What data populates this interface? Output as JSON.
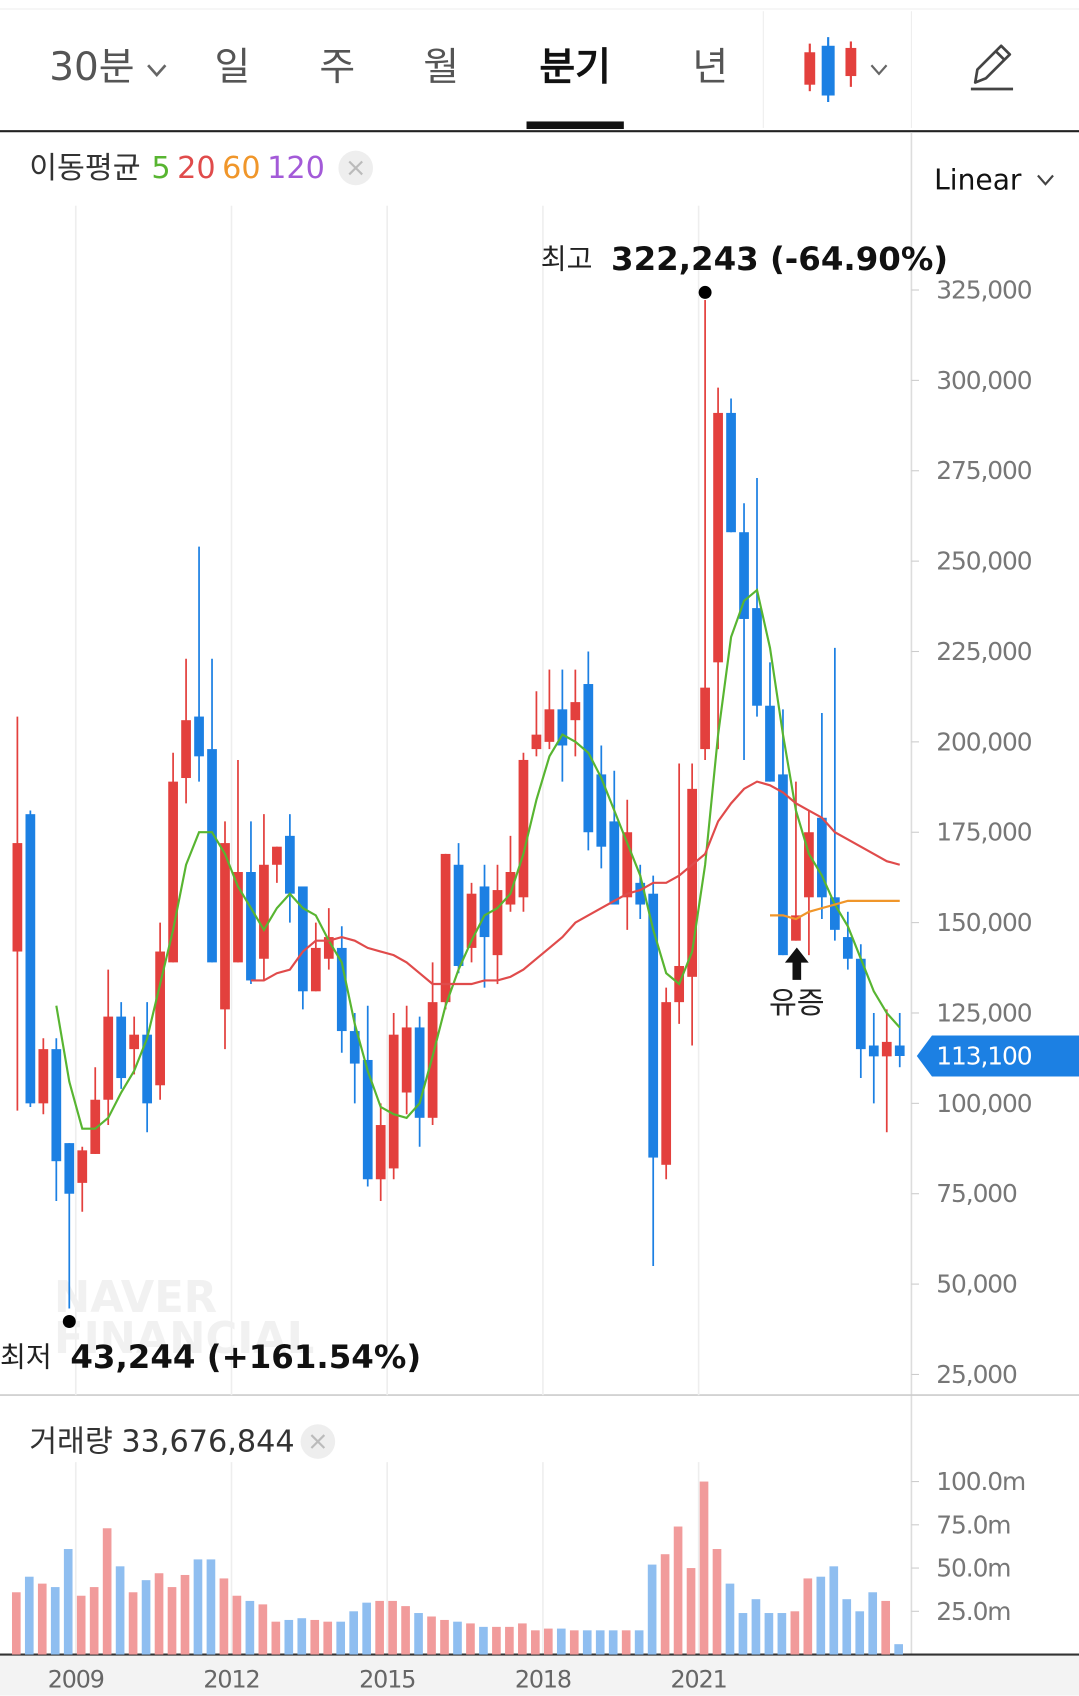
{
  "tabs": [
    "30분",
    "일",
    "주",
    "월",
    "분기",
    "년"
  ],
  "active_tab": 4,
  "chart_data": [
    {
      "type": "candlestick",
      "legend_title": "이동평균",
      "scale_label": "Linear",
      "watermark": [
        "NAVER",
        "FINANCIAL"
      ],
      "up_color": "#e3403d",
      "down_color": "#1c80e3",
      "x": [
        2007.875,
        2008.125,
        2008.375,
        2008.625,
        2008.875,
        2009.125,
        2009.375,
        2009.625,
        2009.875,
        2010.125,
        2010.375,
        2010.625,
        2010.875,
        2011.125,
        2011.375,
        2011.625,
        2011.875,
        2012.125,
        2012.375,
        2012.625,
        2012.875,
        2013.125,
        2013.375,
        2013.625,
        2013.875,
        2014.125,
        2014.375,
        2014.625,
        2014.875,
        2015.125,
        2015.375,
        2015.625,
        2015.875,
        2016.125,
        2016.375,
        2016.625,
        2016.875,
        2017.125,
        2017.375,
        2017.625,
        2017.875,
        2018.125,
        2018.375,
        2018.625,
        2018.875,
        2019.125,
        2019.375,
        2019.625,
        2019.875,
        2020.125,
        2020.375,
        2020.625,
        2020.875,
        2021.125,
        2021.375,
        2021.625,
        2021.875,
        2022.125,
        2022.375,
        2022.625,
        2022.875,
        2023.125,
        2023.375,
        2023.625,
        2023.875,
        2024.125,
        2024.375,
        2024.625,
        2024.875
      ],
      "xlim": [
        2007.54,
        2025.1
      ],
      "xticks": [
        2009,
        2012,
        2015,
        2018,
        2021
      ],
      "ylim": [
        19300,
        348300
      ],
      "yticks": [
        {
          "value": 325000,
          "label": "325,000"
        },
        {
          "value": 300000,
          "label": "300,000"
        },
        {
          "value": 275000,
          "label": "275,000"
        },
        {
          "value": 250000,
          "label": "250,000"
        },
        {
          "value": 225000,
          "label": "225,000"
        },
        {
          "value": 200000,
          "label": "200,000"
        },
        {
          "value": 175000,
          "label": "175,000"
        },
        {
          "value": 150000,
          "label": "150,000"
        },
        {
          "value": 125000,
          "label": "125,000"
        },
        {
          "value": 100000,
          "label": "100,000"
        },
        {
          "value": 75000,
          "label": "75,000"
        },
        {
          "value": 50000,
          "label": "50,000"
        },
        {
          "value": 25000,
          "label": "25,000"
        }
      ],
      "open": [
        142000,
        180000,
        100000,
        115000,
        89000,
        78000,
        86000,
        101000,
        124000,
        115000,
        119000,
        105000,
        139000,
        190000,
        207000,
        198000,
        126000,
        139000,
        164000,
        140000,
        166000,
        174000,
        160000,
        131000,
        140000,
        143000,
        120000,
        112000,
        79000,
        82000,
        103000,
        121000,
        96000,
        128000,
        166000,
        143000,
        160000,
        141000,
        155000,
        157000,
        198000,
        200000,
        209000,
        206000,
        216000,
        191000,
        178000,
        157000,
        161000,
        158000,
        83000,
        128000,
        135000,
        198000,
        222000,
        291000,
        258000,
        237000,
        210000,
        191000,
        145000,
        157000,
        179000,
        157000,
        146000,
        140000,
        116000,
        113000,
        116000
      ],
      "high": [
        207000,
        181000,
        118000,
        118000,
        89000,
        88000,
        110000,
        137000,
        128000,
        124000,
        128000,
        150000,
        197000,
        223000,
        254000,
        223000,
        178000,
        195000,
        178000,
        180000,
        171000,
        180000,
        160000,
        150000,
        154000,
        149000,
        125000,
        127000,
        100000,
        125000,
        127000,
        124000,
        139000,
        169000,
        172000,
        161000,
        166000,
        166000,
        174000,
        197000,
        214000,
        220000,
        220000,
        220000,
        225000,
        199000,
        192000,
        184000,
        166000,
        163000,
        132000,
        194000,
        194000,
        322243,
        298000,
        295000,
        266000,
        273000,
        222000,
        209000,
        189000,
        181000,
        208000,
        226000,
        153000,
        144000,
        125000,
        126000,
        125000
      ],
      "low": [
        98000,
        99000,
        97000,
        73000,
        43244,
        70000,
        86000,
        94000,
        104000,
        108000,
        92000,
        101000,
        139000,
        183000,
        189000,
        139000,
        115000,
        139000,
        133000,
        134000,
        161000,
        150000,
        126000,
        131000,
        137000,
        114000,
        100000,
        77000,
        73000,
        79000,
        97000,
        88000,
        94000,
        126000,
        136000,
        139000,
        132000,
        133000,
        153000,
        153000,
        196000,
        198000,
        189000,
        196000,
        170000,
        165000,
        155000,
        148000,
        151000,
        55000,
        79000,
        122000,
        116000,
        195000,
        198000,
        258000,
        195000,
        207000,
        189000,
        141000,
        145000,
        141000,
        151000,
        145000,
        137000,
        107000,
        100000,
        92000,
        110000
      ],
      "close": [
        172000,
        100000,
        115000,
        84000,
        75000,
        87000,
        101000,
        124000,
        107000,
        119000,
        100000,
        142000,
        189000,
        206000,
        196000,
        139000,
        172000,
        164000,
        134000,
        166000,
        171000,
        158000,
        131000,
        143000,
        146000,
        120000,
        111000,
        79000,
        94000,
        119000,
        121000,
        96000,
        128000,
        169000,
        138000,
        158000,
        146000,
        159000,
        164000,
        195000,
        202000,
        209000,
        199000,
        211000,
        175000,
        171000,
        155000,
        175000,
        155000,
        85000,
        128000,
        138000,
        187000,
        215000,
        291000,
        258000,
        234000,
        210000,
        189000,
        141000,
        152000,
        175000,
        157000,
        148000,
        140000,
        115000,
        113000,
        117000,
        113100
      ],
      "moving_averages": [
        {
          "name": "5",
          "color": "#58b531",
          "values": [
            null,
            null,
            null,
            127000,
            106000,
            93000,
            93000,
            96000,
            103000,
            109000,
            118000,
            133000,
            148000,
            166000,
            175000,
            175000,
            169000,
            160000,
            154000,
            148000,
            154000,
            158000,
            154000,
            152000,
            145000,
            139000,
            122000,
            109000,
            99000,
            97000,
            96000,
            100000,
            113000,
            127000,
            137000,
            145000,
            152000,
            154000,
            158000,
            169000,
            184000,
            196000,
            202000,
            200000,
            197000,
            190000,
            181000,
            172000,
            163000,
            148000,
            136000,
            133000,
            142000,
            166000,
            202000,
            229000,
            239000,
            242000,
            226000,
            202000,
            181000,
            169000,
            163000,
            155000,
            149000,
            140000,
            131000,
            125000,
            121000
          ]
        },
        {
          "name": "20",
          "color": "#e04b4b",
          "values": [
            null,
            null,
            null,
            null,
            null,
            null,
            null,
            null,
            null,
            null,
            null,
            null,
            null,
            null,
            null,
            null,
            null,
            null,
            134000,
            134000,
            136000,
            137000,
            142000,
            145000,
            145000,
            146000,
            145000,
            143000,
            142000,
            141000,
            139000,
            136000,
            133000,
            133000,
            133000,
            133000,
            134000,
            134000,
            135000,
            137000,
            140000,
            143000,
            146000,
            150000,
            152000,
            154000,
            156000,
            158000,
            159000,
            161000,
            161000,
            163000,
            166000,
            169000,
            178000,
            183000,
            187000,
            189000,
            188000,
            186000,
            183000,
            181000,
            179000,
            175000,
            173000,
            171000,
            169000,
            167000,
            166000
          ]
        },
        {
          "name": "60",
          "color": "#f0962a",
          "values": [
            null,
            null,
            null,
            null,
            null,
            null,
            null,
            null,
            null,
            null,
            null,
            null,
            null,
            null,
            null,
            null,
            null,
            null,
            null,
            null,
            null,
            null,
            null,
            null,
            null,
            null,
            null,
            null,
            null,
            null,
            null,
            null,
            null,
            null,
            null,
            null,
            null,
            null,
            null,
            null,
            null,
            null,
            null,
            null,
            null,
            null,
            null,
            null,
            null,
            null,
            null,
            null,
            null,
            null,
            null,
            null,
            null,
            null,
            152000,
            152000,
            151000,
            153000,
            154000,
            155000,
            156000,
            156000,
            156000,
            156000,
            156000
          ]
        },
        {
          "name": "120",
          "color": "#a35ad8"
        }
      ],
      "high_annotation": {
        "label": "최고",
        "text": "322,243 (-64.90%)"
      },
      "low_annotation": {
        "label": "최저",
        "text": "43,244 (+161.54%)"
      },
      "event_label": "유증",
      "current_price": {
        "value": 113100,
        "label": "113,100"
      }
    },
    {
      "type": "bar",
      "title": "거래량",
      "title_value": "33,676,844",
      "up_color": "#f19b9b",
      "down_color": "#8fbef0",
      "ylim": [
        0,
        143750000
      ],
      "yticks": [
        {
          "value": 100000000,
          "label": "100.0m"
        },
        {
          "value": 75000000,
          "label": "75.0m"
        },
        {
          "value": 50000000,
          "label": "50.0m"
        },
        {
          "value": 25000000,
          "label": "25.0m"
        }
      ],
      "values": [
        36000000,
        45000000,
        41000000,
        39000000,
        61000000,
        34000000,
        39000000,
        73000000,
        51000000,
        36000000,
        43000000,
        47000000,
        39000000,
        46000000,
        55000000,
        55000000,
        44000000,
        34000000,
        31000000,
        29000000,
        19000000,
        20000000,
        21000000,
        20000000,
        19000000,
        19000000,
        25000000,
        30000000,
        31000000,
        31000000,
        28000000,
        24000000,
        22000000,
        20000000,
        19000000,
        18000000,
        16000000,
        16000000,
        16000000,
        18000000,
        14000000,
        15000000,
        15000000,
        14000000,
        14000000,
        14000000,
        14000000,
        14000000,
        14000000,
        52000000,
        58000000,
        74000000,
        50000000,
        100000000,
        61000000,
        41000000,
        24000000,
        32000000,
        24000000,
        24000000,
        25000000,
        44000000,
        45000000,
        51000000,
        32000000,
        25000000,
        36000000,
        31000000,
        6000000
      ]
    }
  ]
}
